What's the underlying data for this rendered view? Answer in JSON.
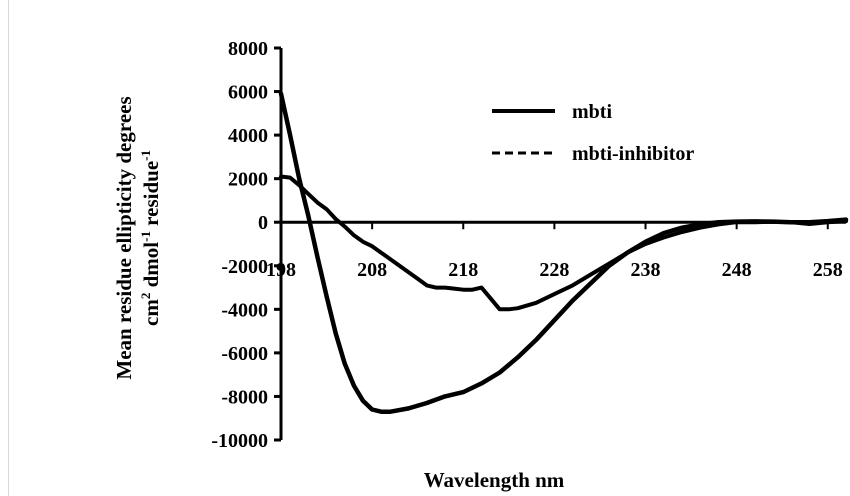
{
  "chart_data": {
    "type": "line",
    "xlabel": "Wavelength nm",
    "ylabel": {
      "line1": "Mean residue ellipticity degrees",
      "line2_prefix": "cm",
      "line2_sup1": "2",
      "line2_mid": " dmol",
      "line2_sup2": "-1",
      "line2_mid2": " residue",
      "line2_sup3": "-1"
    },
    "xlim": [
      198,
      260
    ],
    "ylim": [
      -10000,
      8000
    ],
    "x_ticks": [
      198,
      208,
      218,
      228,
      238,
      248,
      258
    ],
    "y_ticks": [
      8000,
      6000,
      4000,
      2000,
      0,
      -2000,
      -4000,
      -6000,
      -8000,
      -10000
    ],
    "legend_placement": "top-right",
    "grid": false,
    "colors": {
      "line": "#000000"
    },
    "series": [
      {
        "name": "mbti",
        "style": "solid",
        "x": [
          198,
          199,
          200,
          201,
          202,
          203,
          204,
          205,
          206,
          207,
          208,
          209,
          210,
          212,
          214,
          216,
          218,
          220,
          222,
          224,
          226,
          228,
          230,
          232,
          234,
          236,
          238,
          240,
          242,
          244,
          246,
          248,
          250,
          252,
          254,
          256,
          258,
          260
        ],
        "y": [
          5900,
          4000,
          2000,
          300,
          -1600,
          -3400,
          -5100,
          -6500,
          -7500,
          -8200,
          -8600,
          -8700,
          -8700,
          -8550,
          -8300,
          -8000,
          -7800,
          -7400,
          -6900,
          -6200,
          -5400,
          -4500,
          -3600,
          -2800,
          -2000,
          -1400,
          -900,
          -500,
          -250,
          -100,
          0,
          30,
          40,
          30,
          0,
          0,
          50,
          120
        ]
      },
      {
        "name": "mbti-inhibitor",
        "style": "dashed",
        "x": [
          198,
          199,
          200,
          201,
          202,
          203,
          204,
          205,
          206,
          207,
          208,
          209,
          210,
          211,
          212,
          213,
          214,
          215,
          216,
          217,
          218,
          219,
          220,
          221,
          222,
          223,
          224,
          226,
          228,
          230,
          232,
          234,
          236,
          238,
          240,
          242,
          244,
          246,
          248,
          250,
          252,
          254,
          256,
          258,
          260
        ],
        "y": [
          2100,
          2050,
          1700,
          1300,
          900,
          600,
          150,
          -200,
          -600,
          -900,
          -1100,
          -1400,
          -1700,
          -2000,
          -2300,
          -2600,
          -2900,
          -3000,
          -3000,
          -3050,
          -3100,
          -3100,
          -3000,
          -3500,
          -4000,
          -4000,
          -3950,
          -3700,
          -3300,
          -2900,
          -2400,
          -1900,
          -1400,
          -1000,
          -700,
          -450,
          -250,
          -100,
          0,
          0,
          20,
          0,
          -80,
          0,
          50
        ]
      }
    ]
  }
}
